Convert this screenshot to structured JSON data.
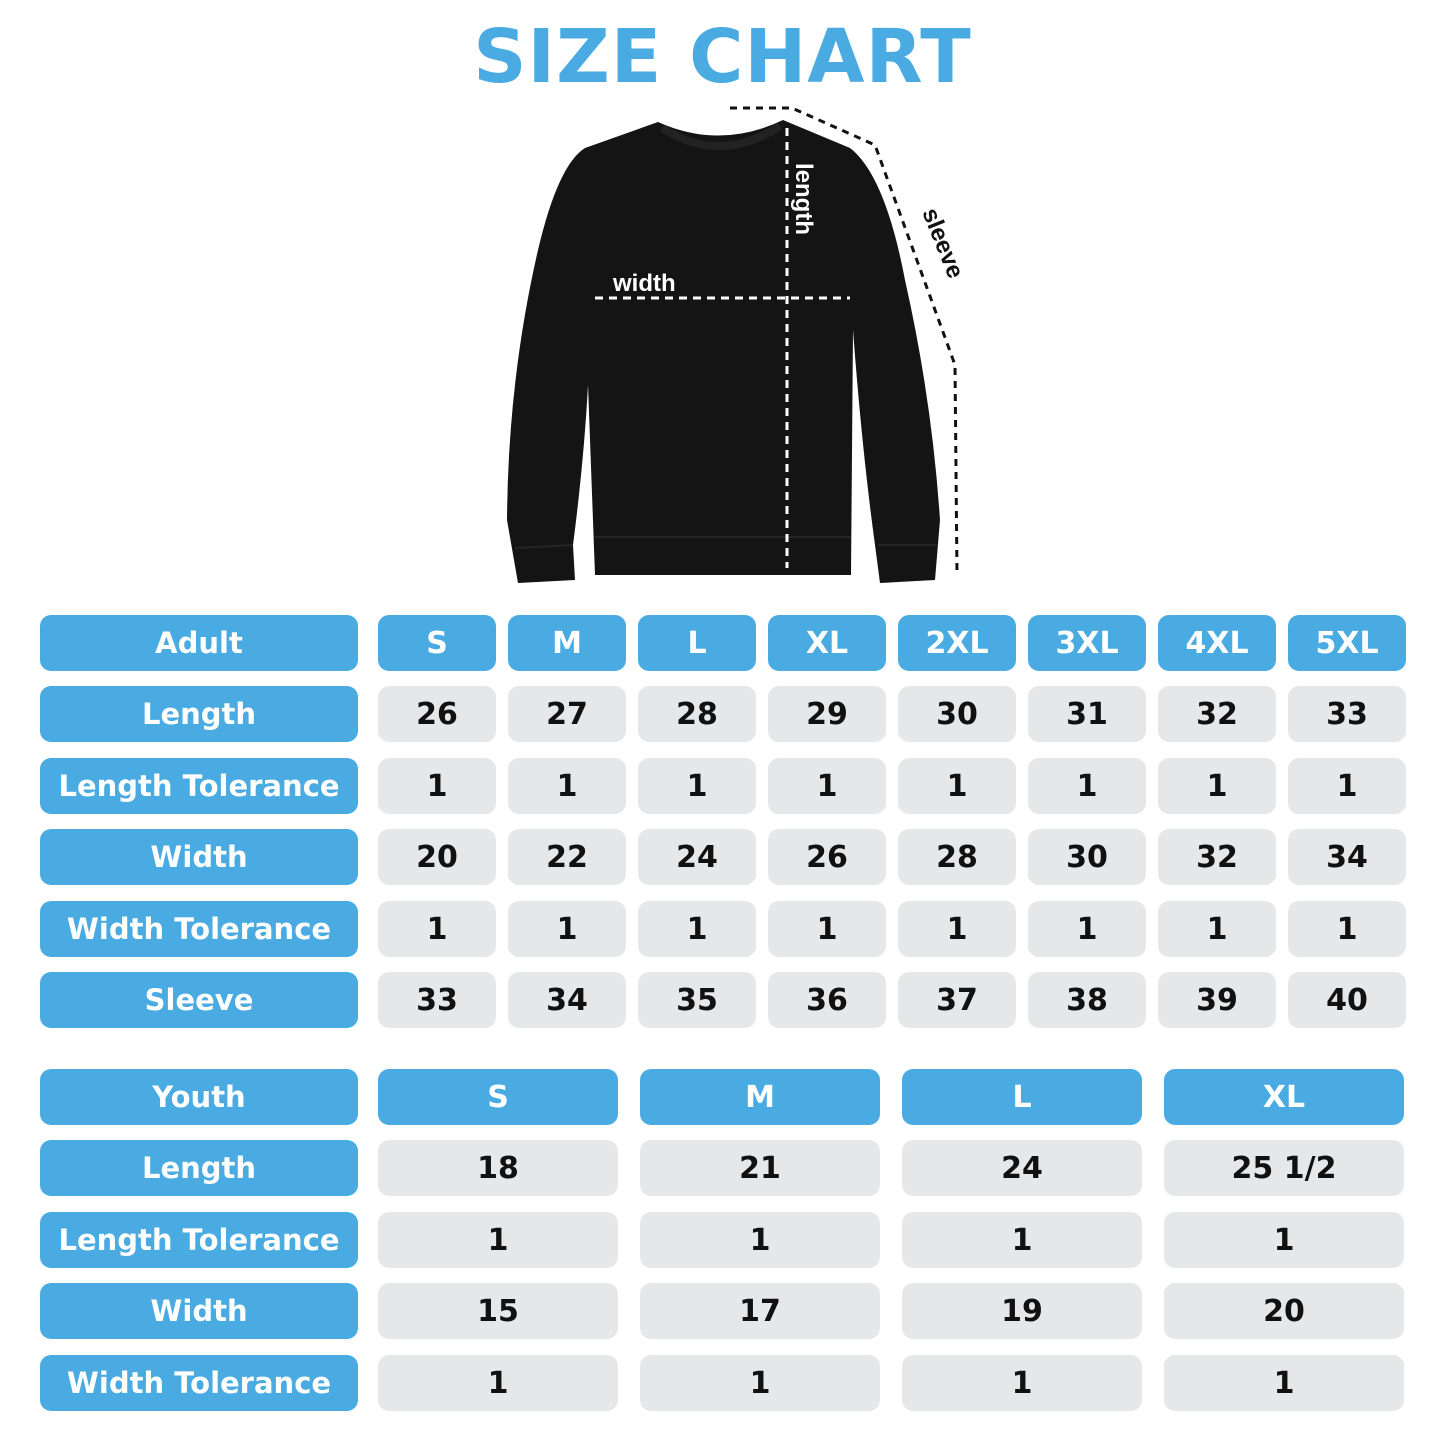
{
  "title": "SIZE CHART",
  "diagram_labels": {
    "width": "width",
    "length": "length",
    "sleeve": "sleeve"
  },
  "colors": {
    "accent": "#49abe1",
    "cell": "#e6e7e9",
    "garment": "#141414"
  },
  "adult": {
    "header": "Adult",
    "sizes": [
      "S",
      "M",
      "L",
      "XL",
      "2XL",
      "3XL",
      "4XL",
      "5XL"
    ],
    "rows": [
      {
        "label": "Length",
        "values": [
          "26",
          "27",
          "28",
          "29",
          "30",
          "31",
          "32",
          "33"
        ]
      },
      {
        "label": "Length Tolerance",
        "values": [
          "1",
          "1",
          "1",
          "1",
          "1",
          "1",
          "1",
          "1"
        ]
      },
      {
        "label": "Width",
        "values": [
          "20",
          "22",
          "24",
          "26",
          "28",
          "30",
          "32",
          "34"
        ]
      },
      {
        "label": "Width Tolerance",
        "values": [
          "1",
          "1",
          "1",
          "1",
          "1",
          "1",
          "1",
          "1"
        ]
      },
      {
        "label": "Sleeve",
        "values": [
          "33",
          "34",
          "35",
          "36",
          "37",
          "38",
          "39",
          "40"
        ]
      }
    ]
  },
  "youth": {
    "header": "Youth",
    "sizes": [
      "S",
      "M",
      "L",
      "XL"
    ],
    "rows": [
      {
        "label": "Length",
        "values": [
          "18",
          "21",
          "24",
          "25 1/2"
        ]
      },
      {
        "label": "Length Tolerance",
        "values": [
          "1",
          "1",
          "1",
          "1"
        ]
      },
      {
        "label": "Width",
        "values": [
          "15",
          "17",
          "19",
          "20"
        ]
      },
      {
        "label": "Width Tolerance",
        "values": [
          "1",
          "1",
          "1",
          "1"
        ]
      }
    ]
  }
}
